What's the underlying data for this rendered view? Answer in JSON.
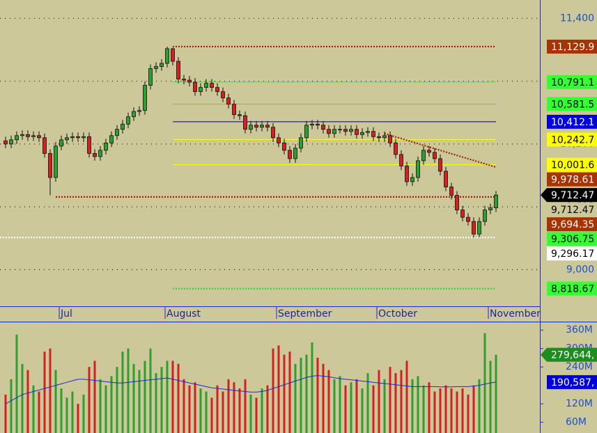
{
  "chart_data": {
    "type": "candlestick",
    "categories": [
      null,
      null,
      null,
      null,
      null,
      null,
      null,
      null,
      null,
      null,
      "Jul",
      null,
      null,
      null,
      null,
      null,
      null,
      null,
      null,
      null,
      null,
      null,
      null,
      null,
      null,
      null,
      null,
      null,
      null,
      "August",
      null,
      null,
      null,
      null,
      null,
      null,
      null,
      null,
      null,
      null,
      null,
      null,
      null,
      null,
      null,
      null,
      null,
      null,
      null,
      "September",
      null,
      null,
      null,
      null,
      null,
      null,
      null,
      null,
      null,
      null,
      null,
      null,
      null,
      null,
      null,
      null,
      null,
      "October",
      null,
      null,
      null,
      null,
      null,
      null,
      null,
      null,
      null,
      null,
      null,
      null,
      null,
      null,
      null,
      null,
      null,
      null,
      null,
      "November",
      null
    ],
    "open": [
      10230,
      10200,
      10240,
      10280,
      10290,
      10270,
      10280,
      10260,
      10110,
      9880,
      10180,
      10240,
      10260,
      10270,
      10260,
      10270,
      10110,
      10080,
      10140,
      10210,
      10280,
      10340,
      10390,
      10460,
      10510,
      10520,
      10760,
      10920,
      10940,
      10970,
      11110,
      10990,
      10820,
      10810,
      10790,
      10700,
      10740,
      10780,
      10740,
      10700,
      10640,
      10580,
      10480,
      10470,
      10340,
      10380,
      10360,
      10380,
      10360,
      10260,
      10210,
      10140,
      10060,
      10160,
      10260,
      10380,
      10390,
      10380,
      10340,
      10300,
      10340,
      10340,
      10320,
      10340,
      10290,
      10310,
      10320,
      10270,
      10260,
      10280,
      10210,
      10100,
      9990,
      9840,
      9880,
      10040,
      10140,
      10120,
      10060,
      9940,
      9790,
      9710,
      9570,
      9500,
      9460,
      9340,
      9460,
      9570,
      9590
    ],
    "high": [
      10270,
      10280,
      10320,
      10330,
      10330,
      10320,
      10320,
      10300,
      10150,
      10220,
      10280,
      10300,
      10310,
      10310,
      10310,
      10310,
      10150,
      10180,
      10250,
      10320,
      10380,
      10430,
      10500,
      10550,
      10560,
      10800,
      10960,
      10980,
      11010,
      11129.9,
      11120,
      11030,
      10860,
      10850,
      10830,
      10780,
      10820,
      10820,
      10780,
      10740,
      10680,
      10620,
      10520,
      10510,
      10420,
      10420,
      10420,
      10420,
      10400,
      10300,
      10250,
      10180,
      10200,
      10300,
      10420,
      10430,
      10430,
      10420,
      10380,
      10380,
      10380,
      10380,
      10380,
      10380,
      10350,
      10360,
      10360,
      10310,
      10320,
      10320,
      10250,
      10140,
      10030,
      9920,
      10080,
      10180,
      10180,
      10160,
      10100,
      9980,
      9830,
      9750,
      9610,
      9540,
      9500,
      9500,
      9610,
      9630,
      9750
    ],
    "low": [
      10160,
      10160,
      10200,
      10240,
      10230,
      10230,
      10220,
      10070,
      9710,
      9840,
      10140,
      10200,
      10220,
      10220,
      10220,
      10070,
      10040,
      10040,
      10100,
      10170,
      10240,
      10300,
      10350,
      10420,
      10470,
      10480,
      10720,
      10880,
      10900,
      10930,
      10950,
      10780,
      10770,
      10750,
      10660,
      10660,
      10700,
      10700,
      10660,
      10600,
      10540,
      10440,
      10430,
      10300,
      10300,
      10320,
      10320,
      10320,
      10220,
      10170,
      10100,
      10020,
      10020,
      10120,
      10220,
      10340,
      10340,
      10300,
      10260,
      10260,
      10300,
      10280,
      10280,
      10250,
      10250,
      10270,
      10230,
      10220,
      10220,
      10170,
      10060,
      9950,
      9800,
      9800,
      9840,
      10000,
      10080,
      10020,
      9900,
      9750,
      9670,
      9530,
      9460,
      9420,
      9306.75,
      9310,
      9420,
      9530,
      9550
    ],
    "close": [
      10200,
      10240,
      10280,
      10290,
      10270,
      10280,
      10260,
      10110,
      9880,
      10180,
      10240,
      10260,
      10270,
      10260,
      10270,
      10110,
      10080,
      10140,
      10210,
      10280,
      10340,
      10390,
      10460,
      10510,
      10520,
      10760,
      10920,
      10940,
      10970,
      11110,
      10990,
      10820,
      10810,
      10790,
      10700,
      10740,
      10780,
      10740,
      10700,
      10640,
      10580,
      10480,
      10470,
      10340,
      10380,
      10360,
      10380,
      10360,
      10260,
      10210,
      10140,
      10060,
      10160,
      10260,
      10380,
      10390,
      10380,
      10340,
      10300,
      10340,
      10340,
      10320,
      10340,
      10290,
      10310,
      10320,
      10270,
      10260,
      10280,
      10210,
      10100,
      9990,
      9840,
      9880,
      10040,
      10140,
      10120,
      10060,
      9940,
      9790,
      9710,
      9570,
      9500,
      9460,
      9340,
      9460,
      9570,
      9590,
      9712.47
    ],
    "color_up": "#2e9e2e",
    "color_down": "#d42020",
    "ylim": [
      8650,
      11575
    ],
    "yticks": [
      {
        "value": 11400,
        "label": "11,400"
      },
      {
        "value": 10800,
        "label": "10,800"
      },
      {
        "value": 10200,
        "label": "10,200"
      },
      {
        "value": 9600,
        "label": "9,600"
      },
      {
        "value": 9000,
        "label": "9,000"
      }
    ],
    "grid": true,
    "levels": [
      {
        "value": 11129.9,
        "label": "11,129.9",
        "color": "#a83200",
        "text_color": "#ffffff",
        "line_color": "#a02000",
        "line_style": "dotted"
      },
      {
        "value": 10791.1,
        "label": "10,791.1",
        "color": "#33ff33",
        "text_color": "#000000",
        "line_color": "#33ee33",
        "line_style": "solid"
      },
      {
        "value": 10581.5,
        "label": "10,581.5",
        "color": "#33ff33",
        "text_color": "#000000",
        "line_color": "#33ee33",
        "line_style": "solid"
      },
      {
        "value": 10412.1,
        "label": "10,412.1",
        "color": "#0000dd",
        "text_color": "#ffffff",
        "line_color": "#000080",
        "line_style": "solid"
      },
      {
        "value": 10242.7,
        "label": "10,242.7",
        "color": "#ffff00",
        "text_color": "#000000",
        "line_color": "#ffff00",
        "line_style": "solid"
      },
      {
        "value": 10001.6,
        "label": "10,001.6",
        "color": "#ffff00",
        "text_color": "#000000",
        "line_color": "#ffff00",
        "line_style": "solid"
      },
      {
        "value": 9978.61,
        "label": "9,978.61",
        "color": "#a83200",
        "text_color": "#ffffff"
      },
      {
        "value": 9712.47,
        "label": "9,712.47",
        "color": "#000000",
        "text_color": "#ffffff"
      },
      {
        "value": 9712.47,
        "label": "9,712.47",
        "color": "#cdc89a",
        "text_color": "#000000"
      },
      {
        "value": 9694.35,
        "label": "9,694.35",
        "color": "#a83200",
        "text_color": "#ffffff",
        "line_color": "#a02000",
        "line_style": "dotted"
      },
      {
        "value": 9306.75,
        "label": "9,306.75",
        "color": "#33ff33",
        "text_color": "#000000",
        "line_color": "#ffffff",
        "line_style": "dotted"
      },
      {
        "value": 9296.17,
        "label": "9,296.17",
        "color": "#ffffff",
        "text_color": "#000000"
      },
      {
        "value": 8818.67,
        "label": "8,818.67",
        "color": "#33ff33",
        "text_color": "#000000",
        "line_color": "#22dd22",
        "line_style": "dotted"
      }
    ],
    "trend_line_start": 10300,
    "trend_line_color": "#a02000",
    "volume": {
      "values": [
        150000000.0,
        200000000.0,
        345000000.0,
        250000000.0,
        230000000.0,
        180000000.0,
        160000000.0,
        290000000.0,
        300000000.0,
        230000000.0,
        170000000.0,
        140000000.0,
        160000000.0,
        120000000.0,
        150000000.0,
        240000000.0,
        260000000.0,
        200000000.0,
        180000000.0,
        210000000.0,
        240000000.0,
        290000000.0,
        300000000.0,
        250000000.0,
        230000000.0,
        260000000.0,
        300000000.0,
        220000000.0,
        240000000.0,
        260000000.0,
        260000000.0,
        250000000.0,
        200000000.0,
        180000000.0,
        190000000.0,
        170000000.0,
        160000000.0,
        140000000.0,
        180000000.0,
        160000000.0,
        200000000.0,
        190000000.0,
        170000000.0,
        200000000.0,
        150000000.0,
        140000000.0,
        170000000.0,
        180000000.0,
        300000000.0,
        310000000.0,
        280000000.0,
        290000000.0,
        250000000.0,
        270000000.0,
        280000000.0,
        320000000.0,
        270000000.0,
        250000000.0,
        230000000.0,
        200000000.0,
        210000000.0,
        180000000.0,
        190000000.0,
        200000000.0,
        170000000.0,
        220000000.0,
        180000000.0,
        230000000.0,
        200000000.0,
        240000000.0,
        220000000.0,
        230000000.0,
        260000000.0,
        200000000.0,
        210000000.0,
        180000000.0,
        190000000.0,
        160000000.0,
        170000000.0,
        180000000.0,
        170000000.0,
        160000000.0,
        170000000.0,
        150000000.0,
        180000000.0,
        200000000.0,
        350000000.0,
        260000000.0,
        279644000
      ],
      "ma": [
        120000000.0,
        130000000.0,
        140000000.0,
        150000000.0,
        155000000.0,
        160000000.0,
        165000000.0,
        170000000.0,
        175000000.0,
        180000000.0,
        185000000.0,
        190000000.0,
        195000000.0,
        200000000.0,
        200000000.0,
        198000000.0,
        196000000.0,
        194000000.0,
        192000000.0,
        190000000.0,
        188000000.0,
        188000000.0,
        190000000.0,
        192000000.0,
        194000000.0,
        196000000.0,
        198000000.0,
        200000000.0,
        202000000.0,
        204000000.0,
        200000000.0,
        196000000.0,
        192000000.0,
        188000000.0,
        184000000.0,
        180000000.0,
        176000000.0,
        172000000.0,
        170000000.0,
        168000000.0,
        166000000.0,
        164000000.0,
        162000000.0,
        160000000.0,
        158000000.0,
        158000000.0,
        160000000.0,
        164000000.0,
        170000000.0,
        176000000.0,
        182000000.0,
        188000000.0,
        194000000.0,
        200000000.0,
        206000000.0,
        210000000.0,
        212000000.0,
        210000000.0,
        208000000.0,
        205000000.0,
        202000000.0,
        200000000.0,
        198000000.0,
        196000000.0,
        194000000.0,
        192000000.0,
        190000000.0,
        188000000.0,
        186000000.0,
        184000000.0,
        182000000.0,
        180000000.0,
        178000000.0,
        176000000.0,
        176000000.0,
        176000000.0,
        176000000.0,
        176000000.0,
        175000000.0,
        175000000.0,
        175000000.0,
        176000000.0,
        176000000.0,
        176000000.0,
        178000000.0,
        180000000.0,
        184000000.0,
        188000000.0,
        190587000
      ],
      "ma_color": "#1a2ad0",
      "ylim": [
        25000000.0,
        383000000.0
      ],
      "yticks": [
        {
          "value": 360000000.0,
          "label": "360M"
        },
        {
          "value": 300000000.0,
          "label": "300M"
        },
        {
          "value": 240000000.0,
          "label": "240M"
        },
        {
          "value": 120000000.0,
          "label": "120M"
        },
        {
          "value": 60000000.0,
          "label": "60M"
        }
      ],
      "markers": [
        {
          "value": 279644000,
          "label": "279,644,",
          "color": "#1e8c1e",
          "text_color": "#ffffff"
        },
        {
          "value": 190587000,
          "label": "190,587,",
          "color": "#0000dd",
          "text_color": "#ffffff"
        }
      ]
    }
  }
}
